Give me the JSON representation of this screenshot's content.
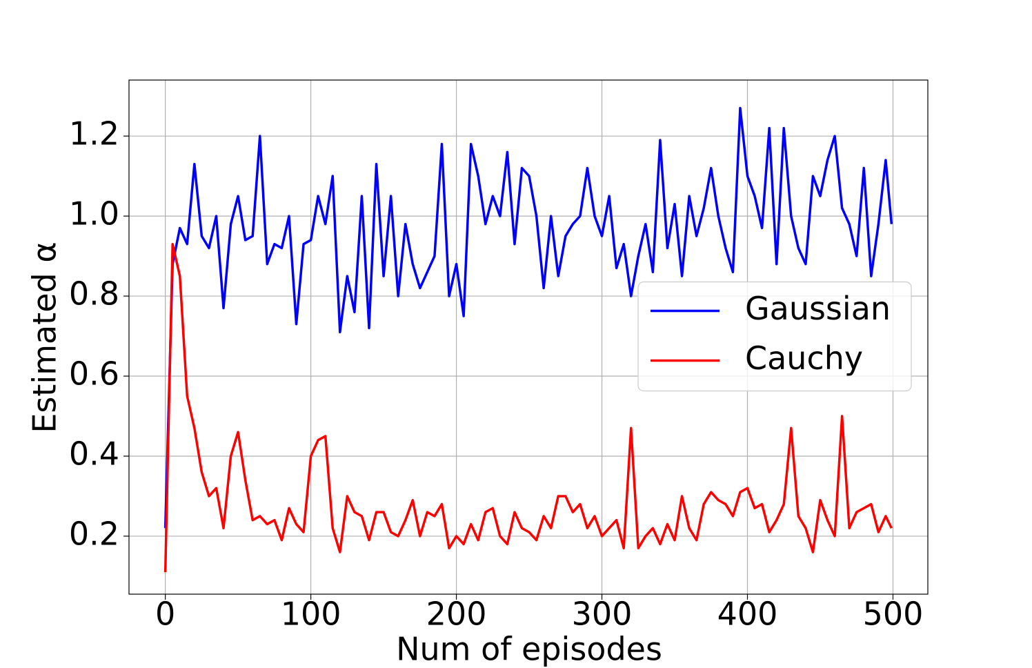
{
  "chart_data": {
    "type": "line",
    "xlabel": "Num of episodes",
    "ylabel": "Estimated α",
    "x": [
      0,
      5,
      10,
      15,
      20,
      25,
      30,
      35,
      40,
      45,
      50,
      55,
      60,
      65,
      70,
      75,
      80,
      85,
      90,
      95,
      100,
      105,
      110,
      115,
      120,
      125,
      130,
      135,
      140,
      145,
      150,
      155,
      160,
      165,
      170,
      175,
      180,
      185,
      190,
      195,
      200,
      205,
      210,
      215,
      220,
      225,
      230,
      235,
      240,
      245,
      250,
      255,
      260,
      265,
      270,
      275,
      280,
      285,
      290,
      295,
      300,
      305,
      310,
      315,
      320,
      325,
      330,
      335,
      340,
      345,
      350,
      355,
      360,
      365,
      370,
      375,
      380,
      385,
      390,
      395,
      400,
      405,
      410,
      415,
      420,
      425,
      430,
      435,
      440,
      445,
      450,
      455,
      460,
      465,
      470,
      475,
      480,
      485,
      490,
      495,
      499
    ],
    "series": [
      {
        "name": "Gaussian",
        "color": "#0000ff",
        "values": [
          0.22,
          0.88,
          0.97,
          0.93,
          1.13,
          0.95,
          0.92,
          1.0,
          0.77,
          0.98,
          1.05,
          0.94,
          0.95,
          1.2,
          0.88,
          0.93,
          0.92,
          1.0,
          0.73,
          0.93,
          0.94,
          1.05,
          0.98,
          1.1,
          0.71,
          0.85,
          0.76,
          1.05,
          0.72,
          1.13,
          0.85,
          1.05,
          0.8,
          0.98,
          0.88,
          0.82,
          0.86,
          0.9,
          1.18,
          0.8,
          0.88,
          0.75,
          1.18,
          1.1,
          0.98,
          1.05,
          1.0,
          1.16,
          0.93,
          1.12,
          1.1,
          1.0,
          0.82,
          1.0,
          0.85,
          0.95,
          0.98,
          1.0,
          1.12,
          1.0,
          0.95,
          1.05,
          0.87,
          0.93,
          0.8,
          0.9,
          0.98,
          0.86,
          1.19,
          0.92,
          1.03,
          0.85,
          1.05,
          0.95,
          1.02,
          1.12,
          1.0,
          0.92,
          0.86,
          1.27,
          1.1,
          1.05,
          0.97,
          1.22,
          0.88,
          1.22,
          1.0,
          0.92,
          0.88,
          1.1,
          1.05,
          1.14,
          1.2,
          1.02,
          0.98,
          0.9,
          1.12,
          0.85,
          0.98,
          1.14,
          0.98
        ]
      },
      {
        "name": "Cauchy",
        "color": "#ff0000",
        "values": [
          0.11,
          0.93,
          0.85,
          0.55,
          0.47,
          0.36,
          0.3,
          0.32,
          0.22,
          0.4,
          0.46,
          0.34,
          0.24,
          0.25,
          0.23,
          0.24,
          0.19,
          0.27,
          0.23,
          0.21,
          0.4,
          0.44,
          0.45,
          0.22,
          0.16,
          0.3,
          0.26,
          0.25,
          0.19,
          0.26,
          0.26,
          0.21,
          0.2,
          0.24,
          0.29,
          0.2,
          0.26,
          0.25,
          0.28,
          0.17,
          0.2,
          0.18,
          0.23,
          0.19,
          0.26,
          0.27,
          0.2,
          0.18,
          0.26,
          0.22,
          0.21,
          0.19,
          0.25,
          0.22,
          0.3,
          0.3,
          0.26,
          0.28,
          0.22,
          0.25,
          0.2,
          0.22,
          0.24,
          0.17,
          0.47,
          0.17,
          0.2,
          0.22,
          0.18,
          0.23,
          0.19,
          0.3,
          0.22,
          0.19,
          0.28,
          0.31,
          0.29,
          0.28,
          0.25,
          0.31,
          0.32,
          0.27,
          0.28,
          0.21,
          0.24,
          0.28,
          0.47,
          0.25,
          0.22,
          0.16,
          0.29,
          0.24,
          0.2,
          0.5,
          0.22,
          0.26,
          0.27,
          0.28,
          0.21,
          0.25,
          0.22
        ]
      }
    ],
    "xlim": [
      -24.95,
      523.95
    ],
    "ylim": [
      0.055,
      1.34
    ],
    "xticks": [
      0,
      100,
      200,
      300,
      400,
      500
    ],
    "yticks": [
      0.2,
      0.4,
      0.6,
      0.8,
      {
        "value": 1,
        "label": "1.0"
      },
      1.2
    ],
    "grid": true,
    "legend": "center right"
  }
}
